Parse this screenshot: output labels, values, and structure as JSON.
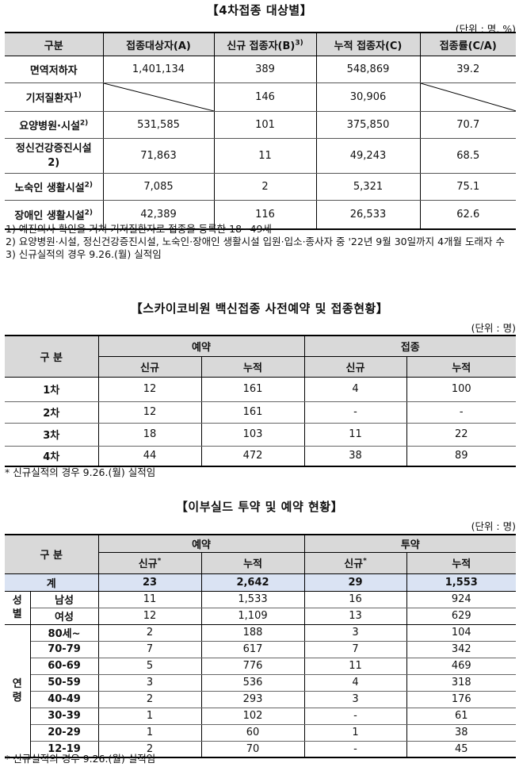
{
  "section1": {
    "title": "【4차접종 대상별】",
    "unit": "(단위 : 명, %)",
    "headers": [
      "구분",
      "접종대상자(A)",
      "신규 접종자(B)",
      "누적 접종자(C)",
      "접종률(C/A)"
    ],
    "header_sup": "3)",
    "rows": [
      {
        "label": "면역저하자",
        "sup": "",
        "a": "1,401,134",
        "b": "389",
        "c": "548,869",
        "rate": "39.2"
      },
      {
        "label": "기저질환자",
        "sup": "1)",
        "a": "",
        "b": "146",
        "c": "30,906",
        "rate": ""
      },
      {
        "label": "요양병원·시설",
        "sup": "2)",
        "a": "531,585",
        "b": "101",
        "c": "375,850",
        "rate": "70.7"
      },
      {
        "label": "정신건강증진시설",
        "sup": "2)",
        "a": "71,863",
        "b": "11",
        "c": "49,243",
        "rate": "68.5"
      },
      {
        "label": "노숙인 생활시설",
        "sup": "2)",
        "a": "7,085",
        "b": "2",
        "c": "5,321",
        "rate": "75.1"
      },
      {
        "label": "장애인 생활시설",
        "sup": "2)",
        "a": "42,389",
        "b": "116",
        "c": "26,533",
        "rate": "62.6"
      }
    ],
    "notes": [
      "1) 예진의사 확인을 거쳐 기저질환자로 접종을 등록한 18~49세",
      "2) 요양병원·시설, 정신건강증진시설, 노숙인·장애인 생활시설 입원·입소·종사자 중 '22년 9월 30일까지 4개월 도래자 수",
      "3) 신규실적의 경우 9.26.(월) 실적임"
    ]
  },
  "section2": {
    "title": "【스카이코비원 백신접종 사전예약 및 접종현황】",
    "unit": "(단위 : 명)",
    "header_group": "구 분",
    "group_reserve": "예약",
    "group_vacc": "접종",
    "sub_new": "신규",
    "sub_cum": "누적",
    "rows": [
      {
        "label": "1차",
        "rn": "12",
        "rc": "161",
        "vn": "4",
        "vc": "100"
      },
      {
        "label": "2차",
        "rn": "12",
        "rc": "161",
        "vn": "-",
        "vc": "-"
      },
      {
        "label": "3차",
        "rn": "18",
        "rc": "103",
        "vn": "11",
        "vc": "22"
      },
      {
        "label": "4차",
        "rn": "44",
        "rc": "472",
        "vn": "38",
        "vc": "89"
      }
    ],
    "note": "* 신규실적의 경우 9.26.(월) 실적임"
  },
  "section3": {
    "title": "【이부실드 투약 및 예약 현황】",
    "unit": "(단위 : 명)",
    "header_group": "구 분",
    "group_reserve": "예약",
    "group_dose": "투약",
    "sub_new": "신규",
    "sub_new_sup": "*",
    "sub_cum": "누적",
    "total": {
      "label": "계",
      "rn": "23",
      "rc": "2,642",
      "dn": "29",
      "dc": "1,553"
    },
    "sex_label": "성별",
    "sex_rows": [
      {
        "label": "남성",
        "rn": "11",
        "rc": "1,533",
        "dn": "16",
        "dc": "924"
      },
      {
        "label": "여성",
        "rn": "12",
        "rc": "1,109",
        "dn": "13",
        "dc": "629"
      }
    ],
    "age_label": "연령",
    "age_rows": [
      {
        "label": "80세~",
        "rn": "2",
        "rc": "188",
        "dn": "3",
        "dc": "104"
      },
      {
        "label": "70-79",
        "rn": "7",
        "rc": "617",
        "dn": "7",
        "dc": "342"
      },
      {
        "label": "60-69",
        "rn": "5",
        "rc": "776",
        "dn": "11",
        "dc": "469"
      },
      {
        "label": "50-59",
        "rn": "3",
        "rc": "536",
        "dn": "4",
        "dc": "318"
      },
      {
        "label": "40-49",
        "rn": "2",
        "rc": "293",
        "dn": "3",
        "dc": "176"
      },
      {
        "label": "30-39",
        "rn": "1",
        "rc": "102",
        "dn": "-",
        "dc": "61"
      },
      {
        "label": "20-29",
        "rn": "1",
        "rc": "60",
        "dn": "1",
        "dc": "38"
      },
      {
        "label": "12-19",
        "rn": "2",
        "rc": "70",
        "dn": "-",
        "dc": "45"
      }
    ],
    "note": "* 신규실적의 경우 9.26.(월) 실적임"
  }
}
